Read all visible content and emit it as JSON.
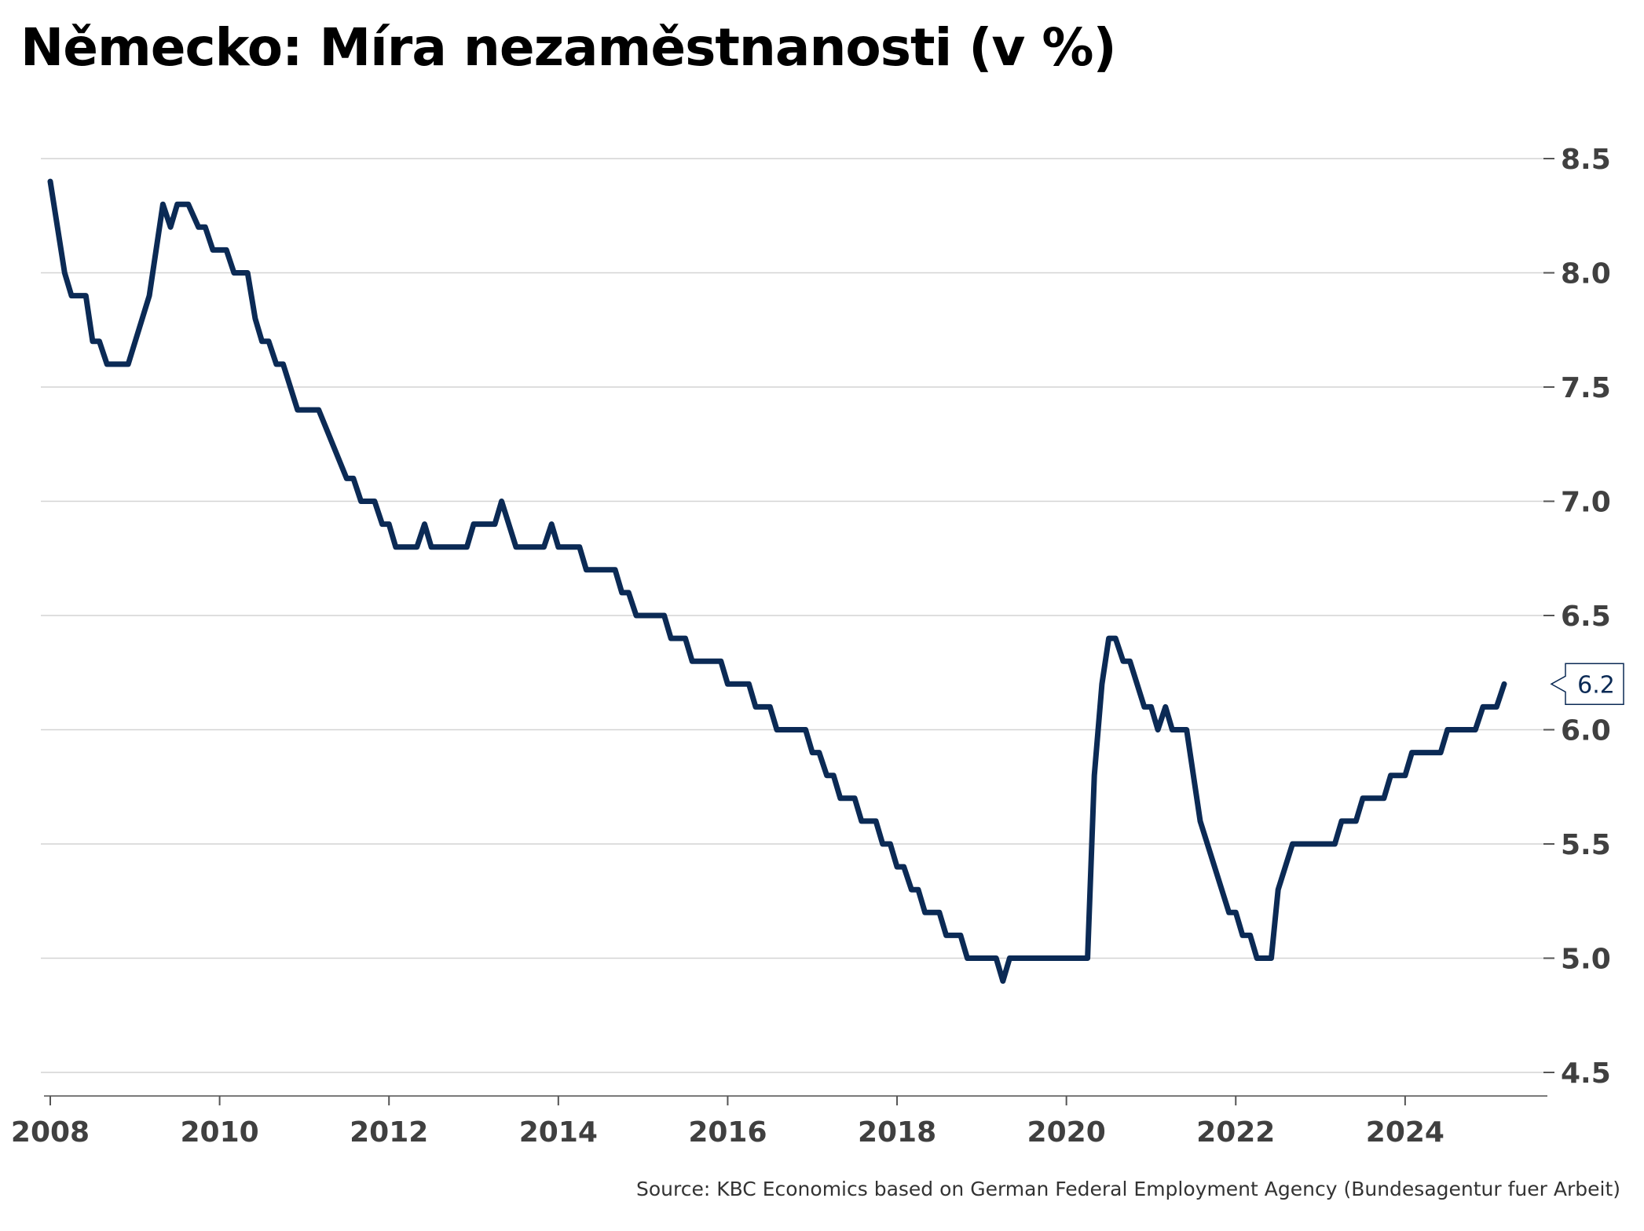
{
  "chart_data": {
    "type": "line",
    "title": "Německo: Míra nezaměstnanosti (v %)",
    "xlabel": "",
    "ylabel": "",
    "x_range": [
      2008,
      2025.1
    ],
    "ylim": [
      4.5,
      8.5
    ],
    "y_axis_position": "right",
    "y_ticks": [
      "4.5",
      "5.0",
      "5.5",
      "6.0",
      "6.5",
      "7.0",
      "7.5",
      "8.0",
      "8.5"
    ],
    "x_ticks": [
      "2008",
      "2010",
      "2012",
      "2014",
      "2016",
      "2018",
      "2020",
      "2022",
      "2024"
    ],
    "grid": "horizontal",
    "line_color": "#0b2a55",
    "series": [
      {
        "points": [
          [
            2008.0,
            8.4
          ],
          [
            2008.17,
            8.0
          ],
          [
            2008.25,
            7.9
          ],
          [
            2008.42,
            7.9
          ],
          [
            2008.5,
            7.7
          ],
          [
            2008.58,
            7.7
          ],
          [
            2008.67,
            7.6
          ],
          [
            2008.92,
            7.6
          ],
          [
            2009.17,
            7.9
          ],
          [
            2009.33,
            8.3
          ],
          [
            2009.42,
            8.2
          ],
          [
            2009.5,
            8.3
          ],
          [
            2009.63,
            8.3
          ],
          [
            2009.75,
            8.2
          ],
          [
            2009.83,
            8.2
          ],
          [
            2009.92,
            8.1
          ],
          [
            2010.0,
            8.1
          ],
          [
            2010.08,
            8.1
          ],
          [
            2010.17,
            8.0
          ],
          [
            2010.33,
            8.0
          ],
          [
            2010.42,
            7.8
          ],
          [
            2010.5,
            7.7
          ],
          [
            2010.58,
            7.7
          ],
          [
            2010.67,
            7.6
          ],
          [
            2010.75,
            7.6
          ],
          [
            2010.92,
            7.4
          ],
          [
            2011.17,
            7.4
          ],
          [
            2011.5,
            7.1
          ],
          [
            2011.58,
            7.1
          ],
          [
            2011.67,
            7.0
          ],
          [
            2011.83,
            7.0
          ],
          [
            2011.92,
            6.9
          ],
          [
            2012.0,
            6.9
          ],
          [
            2012.08,
            6.8
          ],
          [
            2012.33,
            6.8
          ],
          [
            2012.42,
            6.9
          ],
          [
            2012.5,
            6.8
          ],
          [
            2012.92,
            6.8
          ],
          [
            2013.0,
            6.9
          ],
          [
            2013.25,
            6.9
          ],
          [
            2013.33,
            7.0
          ],
          [
            2013.5,
            6.8
          ],
          [
            2013.83,
            6.8
          ],
          [
            2013.92,
            6.9
          ],
          [
            2014.0,
            6.8
          ],
          [
            2014.25,
            6.8
          ],
          [
            2014.33,
            6.7
          ],
          [
            2014.67,
            6.7
          ],
          [
            2014.75,
            6.6
          ],
          [
            2014.83,
            6.6
          ],
          [
            2014.92,
            6.5
          ],
          [
            2015.25,
            6.5
          ],
          [
            2015.33,
            6.4
          ],
          [
            2015.5,
            6.4
          ],
          [
            2015.58,
            6.3
          ],
          [
            2015.92,
            6.3
          ],
          [
            2016.0,
            6.2
          ],
          [
            2016.25,
            6.2
          ],
          [
            2016.33,
            6.1
          ],
          [
            2016.5,
            6.1
          ],
          [
            2016.58,
            6.0
          ],
          [
            2016.92,
            6.0
          ],
          [
            2017.0,
            5.9
          ],
          [
            2017.08,
            5.9
          ],
          [
            2017.17,
            5.8
          ],
          [
            2017.25,
            5.8
          ],
          [
            2017.33,
            5.7
          ],
          [
            2017.5,
            5.7
          ],
          [
            2017.58,
            5.6
          ],
          [
            2017.75,
            5.6
          ],
          [
            2017.83,
            5.5
          ],
          [
            2017.92,
            5.5
          ],
          [
            2018.0,
            5.4
          ],
          [
            2018.08,
            5.4
          ],
          [
            2018.17,
            5.3
          ],
          [
            2018.25,
            5.3
          ],
          [
            2018.33,
            5.2
          ],
          [
            2018.5,
            5.2
          ],
          [
            2018.58,
            5.1
          ],
          [
            2018.75,
            5.1
          ],
          [
            2018.83,
            5.0
          ],
          [
            2019.17,
            5.0
          ],
          [
            2019.25,
            4.9
          ],
          [
            2019.33,
            5.0
          ],
          [
            2020.25,
            5.0
          ],
          [
            2020.33,
            5.8
          ],
          [
            2020.42,
            6.2
          ],
          [
            2020.5,
            6.4
          ],
          [
            2020.58,
            6.4
          ],
          [
            2020.67,
            6.3
          ],
          [
            2020.75,
            6.3
          ],
          [
            2020.92,
            6.1
          ],
          [
            2021.0,
            6.1
          ],
          [
            2021.08,
            6.0
          ],
          [
            2021.17,
            6.1
          ],
          [
            2021.25,
            6.0
          ],
          [
            2021.42,
            6.0
          ],
          [
            2021.58,
            5.6
          ],
          [
            2021.92,
            5.2
          ],
          [
            2022.0,
            5.2
          ],
          [
            2022.08,
            5.1
          ],
          [
            2022.17,
            5.1
          ],
          [
            2022.25,
            5.0
          ],
          [
            2022.42,
            5.0
          ],
          [
            2022.5,
            5.3
          ],
          [
            2022.67,
            5.5
          ],
          [
            2023.17,
            5.5
          ],
          [
            2023.25,
            5.6
          ],
          [
            2023.42,
            5.6
          ],
          [
            2023.5,
            5.7
          ],
          [
            2023.75,
            5.7
          ],
          [
            2023.83,
            5.8
          ],
          [
            2024.0,
            5.8
          ],
          [
            2024.08,
            5.9
          ],
          [
            2024.42,
            5.9
          ],
          [
            2024.5,
            6.0
          ],
          [
            2024.83,
            6.0
          ],
          [
            2024.92,
            6.1
          ],
          [
            2025.08,
            6.1
          ],
          [
            2025.17,
            6.2
          ]
        ]
      }
    ],
    "last_value_label": "6.2",
    "source": "Source: KBC Economics based on German Federal Employment Agency (Bundesagentur fuer Arbeit)"
  }
}
